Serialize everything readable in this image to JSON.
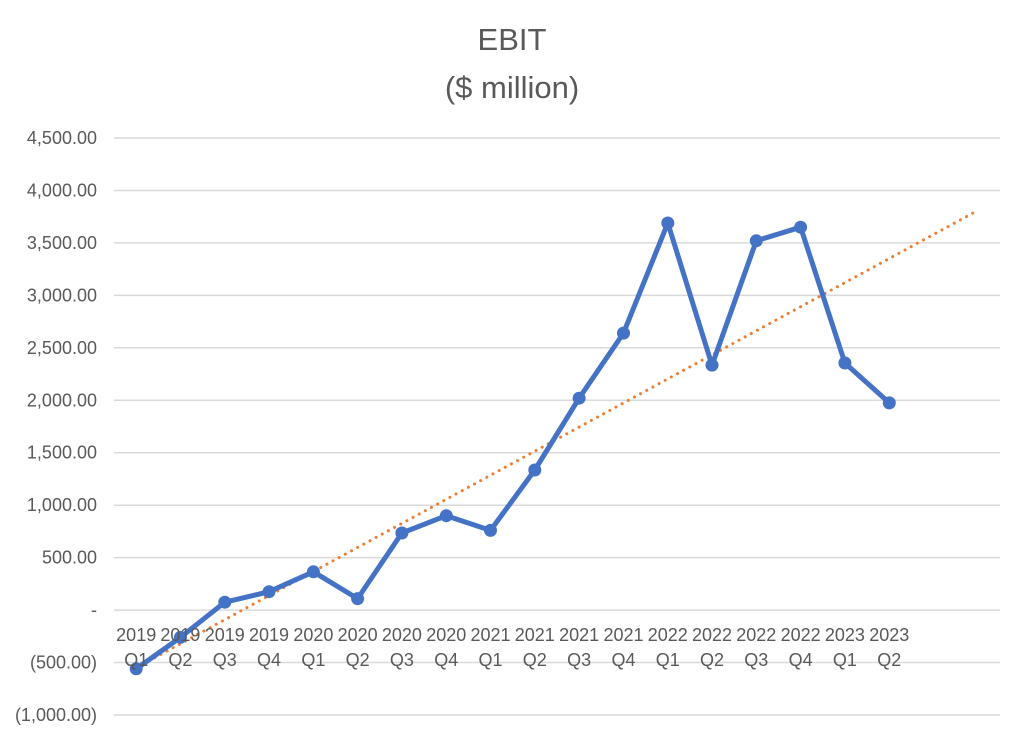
{
  "title": {
    "line1": "EBIT",
    "line2": "($ million)"
  },
  "chart_data": {
    "type": "line",
    "title": "EBIT ($ million)",
    "categories": [
      "2019 Q1",
      "2019 Q2",
      "2019 Q3",
      "2019 Q4",
      "2020 Q1",
      "2020 Q2",
      "2020 Q3",
      "2020 Q4",
      "2021 Q1",
      "2021 Q2",
      "2021 Q3",
      "2021 Q4",
      "2022 Q1",
      "2022 Q2",
      "2022 Q3",
      "2022 Q4",
      "2023 Q1",
      "2023 Q2"
    ],
    "series": [
      {
        "name": "EBIT",
        "color": "#4472C4",
        "marker": "circle",
        "values": [
          -560,
          -260,
          75,
          175,
          365,
          110,
          735,
          900,
          760,
          1335,
          2020,
          2640,
          3690,
          2335,
          3520,
          3650,
          2355,
          1975
        ]
      }
    ],
    "trendline": {
      "name": "linear-trendline",
      "color": "#ED7D31",
      "style": "dotted",
      "start_slot": 0,
      "end_slot": 19,
      "start_value": -550,
      "end_value": 3810
    },
    "x_total_slots": 20,
    "xlabel": "",
    "ylabel": "",
    "ylim": [
      -1000,
      4500
    ],
    "grid": true,
    "legend": "none",
    "y_ticks": [
      {
        "label": "4,500.00",
        "value": 4500
      },
      {
        "label": "4,000.00",
        "value": 4000
      },
      {
        "label": "3,500.00",
        "value": 3500
      },
      {
        "label": "3,000.00",
        "value": 3000
      },
      {
        "label": "2,500.00",
        "value": 2500
      },
      {
        "label": "2,000.00",
        "value": 2000
      },
      {
        "label": "1,500.00",
        "value": 1500
      },
      {
        "label": "1,000.00",
        "value": 1000
      },
      {
        "label": "500.00",
        "value": 500
      },
      {
        "label": "-",
        "value": 0
      },
      {
        "label": "(500.00)",
        "value": -500
      },
      {
        "label": "(1,000.00)",
        "value": -1000
      }
    ],
    "colors": {
      "series_line": "#4472C4",
      "trendline": "#ED7D31",
      "gridline": "#D9D9D9",
      "axis_text": "#595959",
      "title_text": "#595959",
      "background": "#FFFFFF"
    }
  }
}
